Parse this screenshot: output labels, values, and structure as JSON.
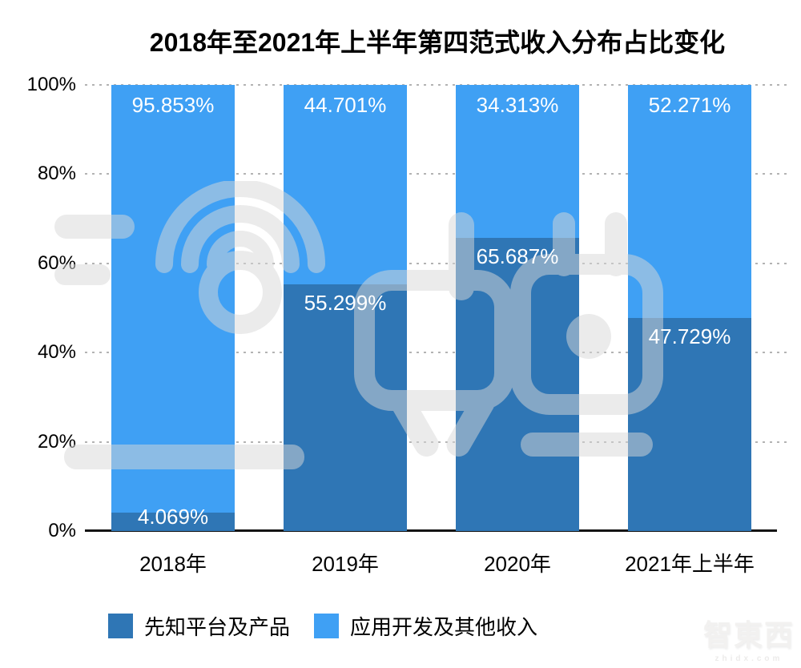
{
  "title": "2018年至2021年上半年第四范式收入分布占比变化",
  "chart_data": {
    "type": "bar",
    "stacked": true,
    "unit": "%",
    "title": "2018年至2021年上半年第四范式收入分布占比变化",
    "categories": [
      "2018年",
      "2019年",
      "2020年",
      "2021年上半年"
    ],
    "series": [
      {
        "name": "先知平台及产品",
        "color": "#2F76B5",
        "values": [
          4.069,
          55.299,
          65.687,
          47.729
        ],
        "labels": [
          "4.069%",
          "55.299%",
          "65.687%",
          "47.729%"
        ]
      },
      {
        "name": "应用开发及其他收入",
        "color": "#3FA0F4",
        "values": [
          95.853,
          44.701,
          34.313,
          52.271
        ],
        "labels": [
          "95.853%",
          "44.701%",
          "34.313%",
          "52.271%"
        ]
      }
    ],
    "ylim": [
      0,
      100
    ],
    "ytick_values": [
      100,
      80,
      60,
      40,
      20,
      0
    ],
    "yticks": [
      "100%",
      "80%",
      "60%",
      "40%",
      "20%",
      "0%"
    ],
    "grid": "horizontal-dotted",
    "legend_position": "bottom-left",
    "value_label_color": "#FFFFFF"
  },
  "watermark": {
    "center_logo": "zhidx-logo",
    "corner_text": "智東西",
    "corner_sub": "zhidx.com"
  },
  "colors": {
    "background": "#FFFFFF",
    "title_text": "#000000",
    "axis_line": "#141414",
    "gridline": "#B3B3B3",
    "tick_label": "#000000",
    "watermark_gray": "#D8D8D8"
  }
}
